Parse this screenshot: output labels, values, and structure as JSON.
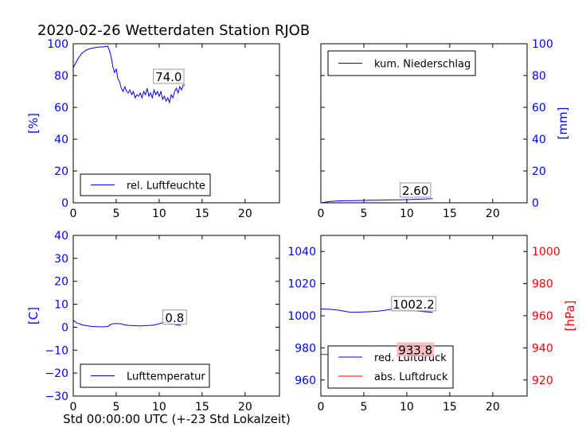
{
  "figure": {
    "title": "2020-02-26 Wetterdaten Station RJOB",
    "xlabel": "Std 00:00:00 UTC (+-23 Std Lokalzeit)"
  },
  "colors": {
    "blue": "#0000ff",
    "red": "#ff0000",
    "label_box_red": "#f4b0b0"
  },
  "chart_data": [
    {
      "id": "humidity",
      "type": "line",
      "ylabel": "[%]",
      "ylabel_side": "left",
      "xlim": [
        0,
        24
      ],
      "ylim": [
        0,
        100
      ],
      "xticks": [
        0,
        5,
        10,
        15,
        20
      ],
      "yticks": [
        0,
        20,
        40,
        60,
        80,
        100
      ],
      "legend": "bottom-center",
      "series": [
        {
          "name": "rel. Luftfeuchte",
          "color": "#0000ff",
          "x": [
            0,
            0.3,
            0.6,
            1.0,
            1.5,
            2.0,
            2.5,
            3.0,
            3.5,
            4.0,
            4.2,
            4.4,
            4.6,
            4.8,
            5.0,
            5.2,
            5.4,
            5.6,
            5.8,
            6.0,
            6.2,
            6.4,
            6.6,
            6.8,
            7.0,
            7.2,
            7.4,
            7.6,
            7.8,
            8.0,
            8.2,
            8.4,
            8.6,
            8.8,
            9.0,
            9.2,
            9.4,
            9.6,
            9.8,
            10.0,
            10.2,
            10.4,
            10.6,
            10.8,
            11.0,
            11.2,
            11.4,
            11.6,
            11.8,
            12.0,
            12.2,
            12.4,
            12.6,
            12.8,
            13.0
          ],
          "y": [
            85,
            88,
            91,
            94,
            96,
            97,
            97.5,
            98,
            98,
            98.5,
            96,
            92,
            86,
            82,
            84,
            78,
            76,
            72,
            70,
            73,
            70,
            69,
            71,
            68,
            70,
            66,
            68,
            67,
            69,
            66,
            70,
            68,
            72,
            67,
            69,
            66,
            71,
            68,
            70,
            67,
            70,
            65,
            67,
            64,
            66,
            63,
            68,
            66,
            70,
            72,
            69,
            73,
            71,
            74,
            74
          ]
        }
      ],
      "annotation": {
        "text": "74.0",
        "x": 11.1,
        "y": 76.5
      }
    },
    {
      "id": "precip",
      "type": "line",
      "ylabel": "[mm]",
      "ylabel_side": "right",
      "xlim": [
        0,
        24
      ],
      "ylim": [
        0,
        100
      ],
      "xticks": [
        0,
        5,
        10,
        15,
        20
      ],
      "yticks": [
        0,
        20,
        40,
        60,
        80,
        100
      ],
      "legend": "top-center",
      "series": [
        {
          "name": "kum. Niederschlag",
          "color": "#0000ff",
          "x": [
            0,
            0.5,
            1.0,
            1.5,
            2.0,
            3.0,
            4.0,
            5.0,
            6.0,
            7.0,
            8.0,
            9.0,
            10.0,
            11.0,
            12.0,
            13.0
          ],
          "y": [
            0,
            0.4,
            0.8,
            1.0,
            1.2,
            1.3,
            1.4,
            1.5,
            1.6,
            1.7,
            1.8,
            1.9,
            2.0,
            2.2,
            2.4,
            2.6
          ]
        }
      ],
      "annotation": {
        "text": "2.60",
        "x": 11.0,
        "y": 5.0
      }
    },
    {
      "id": "temperature",
      "type": "line",
      "ylabel": "[C]",
      "ylabel_side": "left",
      "xlim": [
        0,
        24
      ],
      "ylim": [
        -30,
        40
      ],
      "xticks": [
        0,
        5,
        10,
        15,
        20
      ],
      "yticks": [
        -30,
        -20,
        -10,
        0,
        10,
        20,
        30,
        40
      ],
      "legend": "bottom-center",
      "series": [
        {
          "name": "Lufttemperatur",
          "color": "#0000ff",
          "x": [
            0,
            0.2,
            0.4,
            0.6,
            0.8,
            1.0,
            1.5,
            2.0,
            2.5,
            3.0,
            3.5,
            4.0,
            4.3,
            4.6,
            5.0,
            5.5,
            6.0,
            6.5,
            7.0,
            7.5,
            8.0,
            8.5,
            9.0,
            9.5,
            10.0,
            10.5,
            11.0,
            11.5,
            12.0,
            12.5
          ],
          "y": [
            3.0,
            2.5,
            1.8,
            1.6,
            1.4,
            1.0,
            0.7,
            0.4,
            0.3,
            0.2,
            0.2,
            0.3,
            1.0,
            1.5,
            1.6,
            1.5,
            1.0,
            0.8,
            0.7,
            0.6,
            0.6,
            0.7,
            0.8,
            1.0,
            1.5,
            2.2,
            2.0,
            1.5,
            1.0,
            0.8
          ]
        }
      ],
      "annotation": {
        "text": "0.8",
        "x": 11.8,
        "y": 2.3
      }
    },
    {
      "id": "pressure",
      "type": "line",
      "ylabel": "[hPa]",
      "ylabel_side": "right",
      "xlim": [
        0,
        24
      ],
      "ylim_left": [
        950,
        1050
      ],
      "yticks_left": [
        960,
        980,
        1000,
        1020,
        1040
      ],
      "ylim_right": [
        910,
        1010
      ],
      "yticks_right": [
        920,
        940,
        960,
        980,
        1000
      ],
      "xticks": [
        0,
        5,
        10,
        15,
        20
      ],
      "legend": "bottom-center",
      "series": [
        {
          "name": "red. Luftdruck",
          "color": "#0000ff",
          "axis": "left",
          "x": [
            0,
            1,
            2,
            2.5,
            3,
            3.5,
            4,
            5,
            6,
            7,
            8,
            8.5,
            9,
            10,
            11,
            12,
            13
          ],
          "y": [
            1004.2,
            1004.0,
            1003.5,
            1003.0,
            1002.5,
            1002.2,
            1002.2,
            1002.4,
            1002.6,
            1003.0,
            1003.8,
            1004.0,
            1003.8,
            1003.5,
            1003.0,
            1002.5,
            1002.2
          ]
        },
        {
          "name": "abs. Luftdruck",
          "color": "#ff0000",
          "axis": "right",
          "x": [
            0,
            1,
            2,
            2.5,
            3,
            3.5,
            4,
            5,
            6,
            7,
            8,
            8.5,
            9,
            10,
            11,
            12,
            13
          ],
          "y": [
            936.0,
            935.8,
            935.3,
            934.8,
            934.3,
            934.0,
            934.0,
            934.2,
            934.4,
            934.8,
            935.6,
            935.8,
            935.6,
            935.3,
            934.8,
            934.3,
            933.8
          ]
        }
      ],
      "annotations": [
        {
          "text": "1002.2",
          "x": 10.8,
          "y": 1004.5,
          "axis": "left"
        },
        {
          "text": "933.8",
          "x": 11.0,
          "y": 936.0,
          "axis": "right",
          "boxed_red": true
        }
      ]
    }
  ]
}
